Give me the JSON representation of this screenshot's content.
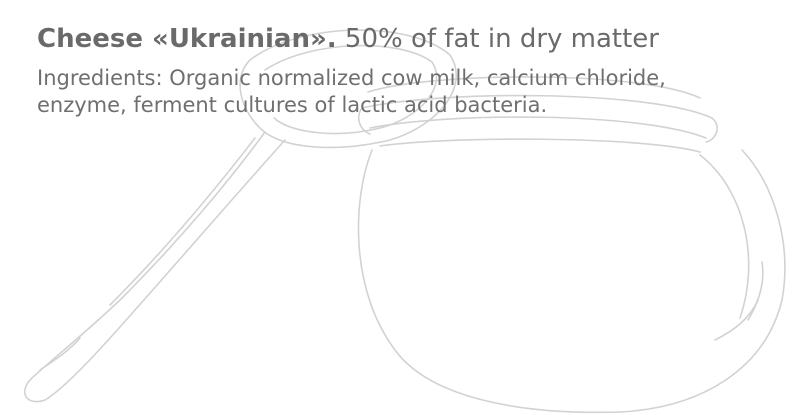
{
  "product": {
    "name": "Cheese «Ukrainian».",
    "fat_info": "50% of fat in dry matter",
    "ingredients_line1": "Ingredients: Organic normalized cow milk, calcium chloride,",
    "ingredients_line2": "enzyme, ferment cultures of lactic acid bacteria."
  },
  "illustration": {
    "icon": "spoon-and-jar-sketch-icon",
    "stroke_color": "#d4d4d4"
  }
}
